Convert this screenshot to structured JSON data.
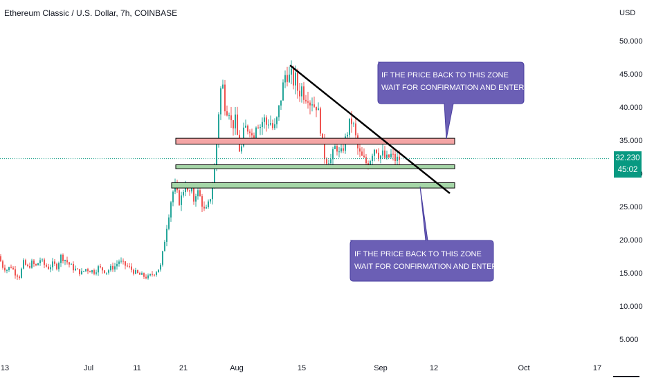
{
  "header": {
    "title": "Ethereum Classic / U.S. Dollar, 7h, COINBASE"
  },
  "price_badge": {
    "price": "32.230",
    "countdown": "45:02",
    "color": "#089981"
  },
  "callouts": {
    "short": {
      "line1": "IF THE PRICE BACK TO THIS ZONE",
      "line2": "WAIT FOR CONFIRMATION AND ENTER SHORT"
    },
    "long": {
      "line1": "IF THE PRICE BACK TO THIS ZONE",
      "line2": "WAIT FOR CONFIRMATION AND ENTER LONG"
    },
    "color": "#6b5fb5"
  },
  "colors": {
    "up": "#26a69a",
    "down": "#ef5350",
    "resistance_zone": "#f4a5a5",
    "support_zone": "#a5d6a7",
    "trendline": "#000000"
  },
  "chart_data": {
    "type": "candlestick",
    "title": "Ethereum Classic / U.S. Dollar, 7h, COINBASE",
    "yaxis_unit": "USD",
    "ylim": [
      0,
      55
    ],
    "yticks": [
      "5.000",
      "10.000",
      "15.000",
      "20.000",
      "25.000",
      "30.000",
      "35.000",
      "40.000",
      "45.000",
      "50.000"
    ],
    "ytick_values": [
      5,
      10,
      15,
      20,
      25,
      30,
      35,
      40,
      45,
      50
    ],
    "xticks": [
      "13",
      "Jul",
      "11",
      "21",
      "Aug",
      "15",
      "Sep",
      "12",
      "Oct",
      "17"
    ],
    "last_price": 32.23,
    "price_path": [
      [
        0,
        17.5
      ],
      [
        6,
        16.0
      ],
      [
        12,
        15.5
      ],
      [
        18,
        16.0
      ],
      [
        24,
        15.0
      ],
      [
        30,
        14.5
      ],
      [
        36,
        16.5
      ],
      [
        42,
        15.8
      ],
      [
        48,
        16.5
      ],
      [
        54,
        16.0
      ],
      [
        60,
        17.0
      ],
      [
        66,
        16.2
      ],
      [
        72,
        15.8
      ],
      [
        78,
        16.3
      ],
      [
        84,
        16.0
      ],
      [
        90,
        17.5
      ],
      [
        96,
        17.0
      ],
      [
        102,
        16.3
      ],
      [
        108,
        15.7
      ],
      [
        114,
        15.3
      ],
      [
        120,
        15.0
      ],
      [
        126,
        15.6
      ],
      [
        132,
        15.4
      ],
      [
        138,
        15.2
      ],
      [
        144,
        15.8
      ],
      [
        150,
        15.5
      ],
      [
        156,
        15.2
      ],
      [
        162,
        15.7
      ],
      [
        168,
        16.0
      ],
      [
        174,
        16.8
      ],
      [
        180,
        16.3
      ],
      [
        186,
        16.0
      ],
      [
        192,
        15.5
      ],
      [
        198,
        15.0
      ],
      [
        204,
        14.7
      ],
      [
        210,
        14.5
      ],
      [
        216,
        14.3
      ],
      [
        222,
        14.8
      ],
      [
        228,
        15.3
      ],
      [
        234,
        16.0
      ],
      [
        238,
        18.5
      ],
      [
        242,
        21.5
      ],
      [
        246,
        24.0
      ],
      [
        250,
        26.5
      ],
      [
        254,
        28.0
      ],
      [
        258,
        26.8
      ],
      [
        262,
        25.5
      ],
      [
        266,
        27.2
      ],
      [
        270,
        28.5
      ],
      [
        274,
        26.5
      ],
      [
        278,
        27.8
      ],
      [
        282,
        26.0
      ],
      [
        286,
        27.5
      ],
      [
        290,
        26.7
      ],
      [
        294,
        25.5
      ],
      [
        298,
        24.0
      ],
      [
        302,
        24.8
      ],
      [
        306,
        26.5
      ],
      [
        310,
        28.5
      ],
      [
        314,
        33.0
      ],
      [
        317,
        38.0
      ],
      [
        320,
        42.0
      ],
      [
        323,
        44.0
      ],
      [
        326,
        41.0
      ],
      [
        329,
        39.5
      ],
      [
        332,
        40.5
      ],
      [
        335,
        38.0
      ],
      [
        338,
        37.0
      ],
      [
        341,
        38.5
      ],
      [
        344,
        36.5
      ],
      [
        347,
        34.0
      ],
      [
        350,
        33.0
      ],
      [
        353,
        35.5
      ],
      [
        356,
        37.0
      ],
      [
        359,
        36.5
      ],
      [
        362,
        37.5
      ],
      [
        365,
        36.0
      ],
      [
        368,
        35.0
      ],
      [
        371,
        37.5
      ],
      [
        374,
        38.0
      ],
      [
        377,
        37.0
      ],
      [
        380,
        37.5
      ],
      [
        383,
        38.5
      ],
      [
        386,
        37.2
      ],
      [
        389,
        37.8
      ],
      [
        392,
        38.0
      ],
      [
        395,
        37.0
      ],
      [
        398,
        36.5
      ],
      [
        401,
        37.5
      ],
      [
        404,
        39.0
      ],
      [
        407,
        41.0
      ],
      [
        410,
        42.5
      ],
      [
        413,
        44.5
      ],
      [
        416,
        45.5
      ],
      [
        419,
        44.0
      ],
      [
        422,
        45.2
      ],
      [
        425,
        43.5
      ],
      [
        428,
        44.8
      ],
      [
        431,
        43.0
      ],
      [
        434,
        42.0
      ],
      [
        437,
        43.2
      ],
      [
        440,
        42.3
      ],
      [
        443,
        41.5
      ],
      [
        446,
        42.5
      ],
      [
        449,
        40.5
      ],
      [
        452,
        41.5
      ],
      [
        455,
        40.0
      ],
      [
        458,
        40.8
      ],
      [
        461,
        39.5
      ],
      [
        464,
        38.0
      ],
      [
        467,
        35.0
      ],
      [
        470,
        33.0
      ],
      [
        473,
        32.0
      ],
      [
        476,
        32.5
      ],
      [
        479,
        31.8
      ],
      [
        482,
        32.5
      ],
      [
        485,
        33.5
      ],
      [
        488,
        34.5
      ],
      [
        491,
        33.0
      ],
      [
        494,
        32.5
      ],
      [
        497,
        33.8
      ],
      [
        500,
        34.5
      ],
      [
        503,
        36.0
      ],
      [
        506,
        37.0
      ],
      [
        509,
        38.0
      ],
      [
        512,
        37.5
      ],
      [
        515,
        36.0
      ],
      [
        518,
        34.0
      ],
      [
        521,
        33.0
      ],
      [
        524,
        32.5
      ],
      [
        527,
        32.0
      ],
      [
        530,
        31.8
      ],
      [
        533,
        31.2
      ],
      [
        536,
        32.0
      ],
      [
        539,
        33.0
      ],
      [
        542,
        33.8
      ],
      [
        545,
        34.0
      ],
      [
        548,
        33.2
      ],
      [
        551,
        32.5
      ],
      [
        554,
        33.0
      ],
      [
        557,
        32.5
      ],
      [
        560,
        32.0
      ],
      [
        563,
        32.3
      ],
      [
        566,
        32.8
      ],
      [
        569,
        32.5
      ],
      [
        572,
        32.2
      ],
      [
        575,
        32.0
      ],
      [
        578,
        32.2
      ]
    ],
    "zones": [
      {
        "label": "resistance",
        "low": 34.4,
        "high": 35.3
      },
      {
        "label": "support_upper",
        "low": 30.7,
        "high": 31.3
      },
      {
        "label": "support_lower",
        "low": 27.8,
        "high": 28.6
      }
    ],
    "trendline": {
      "from": [
        419,
        46.3
      ],
      "to": [
        650,
        27.0
      ]
    }
  }
}
